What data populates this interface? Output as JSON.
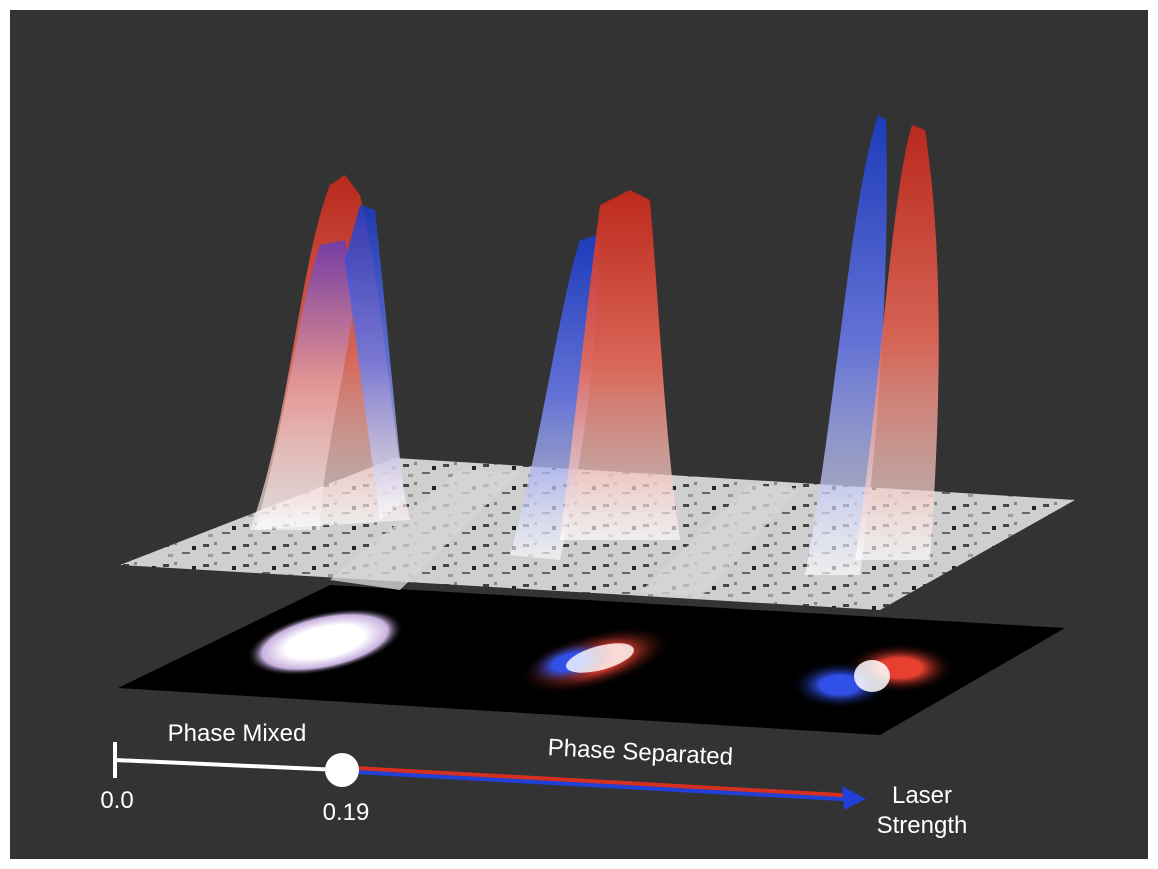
{
  "labels": {
    "phase_mixed": "Phase Mixed",
    "phase_separated": "Phase Separated",
    "start": "0.0",
    "threshold": "0.19",
    "axis_title": [
      "Laser",
      "Strength"
    ]
  }
}
